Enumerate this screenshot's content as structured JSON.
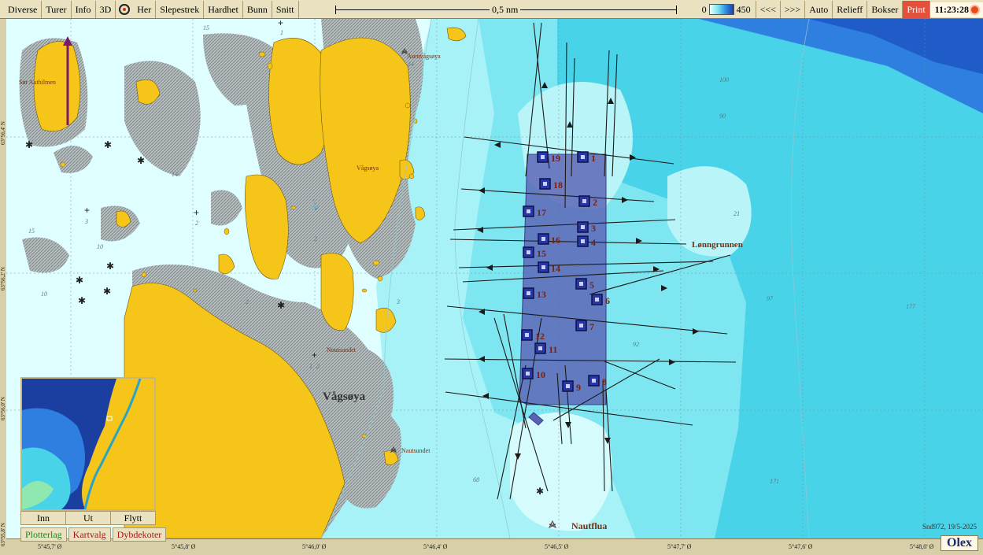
{
  "toolbar": {
    "items": [
      "Diverse",
      "Turer",
      "Info",
      "3D",
      "Her",
      "Slepestrek",
      "Hardhet",
      "Bunn",
      "Snitt"
    ],
    "scale_label": "0,5 nm",
    "depth_min": "0",
    "depth_max": "450",
    "nav_back": "<<<",
    "nav_fwd": ">>>",
    "right_items": [
      "Auto",
      "Relieff",
      "Bokser"
    ],
    "print_label": "Print",
    "clock": "11:23:28"
  },
  "map": {
    "place_names": {
      "sor_authi": "Sør Authilmen",
      "asenvagsoya": "Åsenvågsøya",
      "vagsoya_small": "Vågsøya",
      "vagsoya_big": "Vågsøya",
      "lonngrunnen": "Lønngrunnen",
      "noutsundet_small": "Noutsundet",
      "nautsundet": "Nautsundet",
      "nautflua": "Nautflua"
    },
    "depths": [
      "15",
      "14",
      "15",
      "10",
      "10",
      "2",
      "2",
      "2",
      "3",
      "3",
      "2",
      "90",
      "100",
      "21",
      "97",
      "177",
      "92",
      "68",
      "171",
      "14",
      "1",
      "1"
    ],
    "marks": [
      "1",
      "2",
      "3",
      "4",
      "5",
      "6",
      "7",
      "8",
      "9",
      "10",
      "11",
      "12",
      "13",
      "14",
      "15",
      "16",
      "17",
      "18",
      "19"
    ],
    "lat_labels": [
      "63°56,4' N",
      "63°56,2' N",
      "63°56,0' N",
      "63°55,8' N"
    ],
    "lon_labels": [
      "5°45,7' Ø",
      "5°45,8' Ø",
      "5°46,0' Ø",
      "5°46,4' Ø",
      "5°46,5' Ø",
      "5°47,7' Ø",
      "5°47,6' Ø",
      "5°48,0' Ø"
    ]
  },
  "inset": {
    "buttons": [
      "Inn",
      "Ut",
      "Flytt"
    ],
    "layers": [
      "Plotterlag",
      "Kartvalg",
      "Dybdekoter"
    ]
  },
  "footer": {
    "version": "Snd972, 19/5-2025",
    "brand": "Olex"
  },
  "colors": {
    "land": "#f5c51a",
    "shallow": "#e6ffff",
    "mid": "#a6f2f6",
    "deep": "#49d3e8",
    "deepest": "#2f7fe0",
    "area": "#5a62b4",
    "toolbar": "#e9e1bf"
  }
}
